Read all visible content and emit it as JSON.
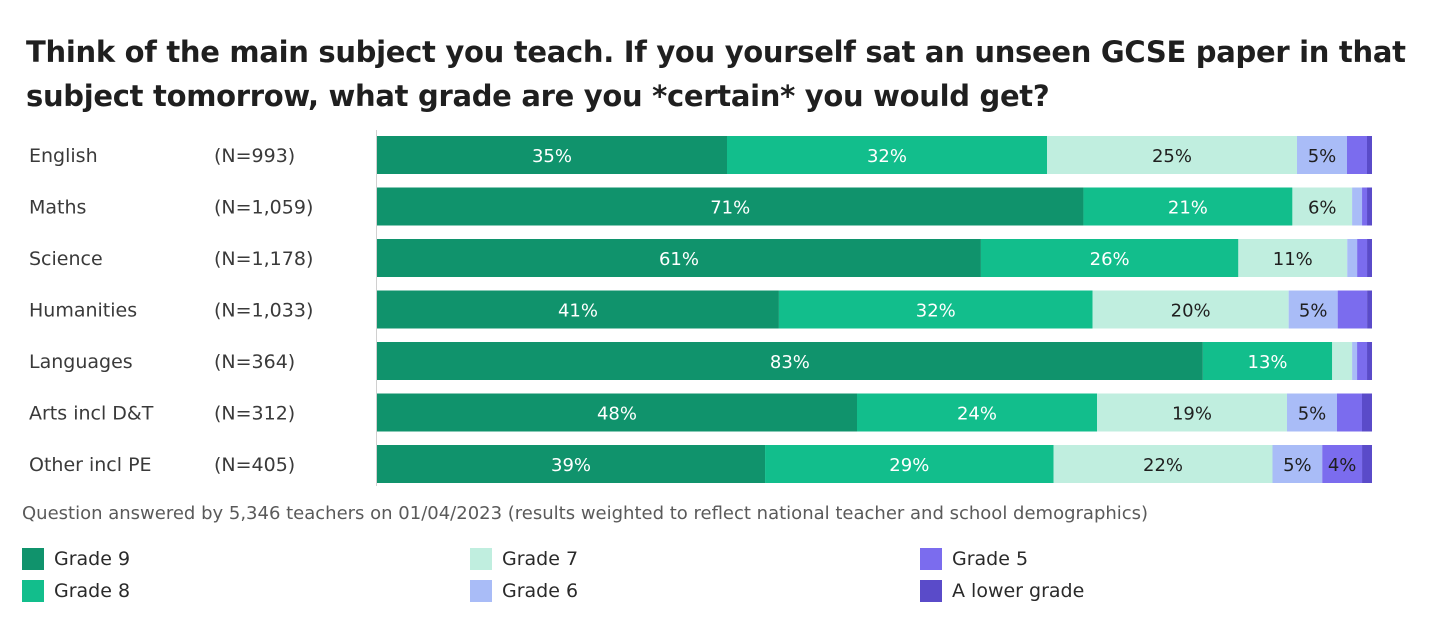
{
  "title": "Think of the main subject you teach. If you yourself sat an unseen GCSE paper in that subject tomorrow, what grade are you *certain* you would get?",
  "note": "Question answered by 5,346 teachers on 01/04/2023 (results weighted to reflect national teacher and school demographics)",
  "colors": {
    "Grade 9": "#10936c",
    "Grade 8": "#12be8c",
    "Grade 7": "#c0eedf",
    "Grade 6": "#a9bcf7",
    "Grade 5": "#7b6cee",
    "A lower grade": "#5a4bc9"
  },
  "legend": [
    {
      "label": "Grade 9",
      "key": "Grade 9"
    },
    {
      "label": "Grade 8",
      "key": "Grade 8"
    },
    {
      "label": "Grade 7",
      "key": "Grade 7"
    },
    {
      "label": "Grade 6",
      "key": "Grade 6"
    },
    {
      "label": "Grade 5",
      "key": "Grade 5"
    },
    {
      "label": "A lower grade",
      "key": "A lower grade"
    }
  ],
  "chart_data": {
    "type": "bar",
    "orientation": "horizontal",
    "stacked": true,
    "categories": [
      "English",
      "Maths",
      "Science",
      "Humanities",
      "Languages",
      "Arts incl D&T",
      "Other incl PE"
    ],
    "sample_sizes": [
      "(N=993)",
      "(N=1,059)",
      "(N=1,178)",
      "(N=1,033)",
      "(N=364)",
      "(N=312)",
      "(N=405)"
    ],
    "series": [
      {
        "name": "Grade 9",
        "values": [
          35,
          71,
          61,
          41,
          83,
          48,
          39
        ]
      },
      {
        "name": "Grade 8",
        "values": [
          32,
          21,
          26,
          32,
          13,
          24,
          29
        ]
      },
      {
        "name": "Grade 7",
        "values": [
          25,
          6,
          11,
          20,
          2,
          19,
          22
        ]
      },
      {
        "name": "Grade 6",
        "values": [
          5,
          1,
          1,
          5,
          0.5,
          5,
          5
        ]
      },
      {
        "name": "Grade 5",
        "values": [
          2,
          0.5,
          1,
          3,
          1,
          2.5,
          4
        ]
      },
      {
        "name": "A lower grade",
        "values": [
          0.5,
          0.5,
          0.5,
          0.5,
          0.5,
          1,
          1
        ]
      }
    ],
    "label_threshold": 4,
    "xlim": [
      0,
      100
    ],
    "legend_position": "bottom"
  }
}
